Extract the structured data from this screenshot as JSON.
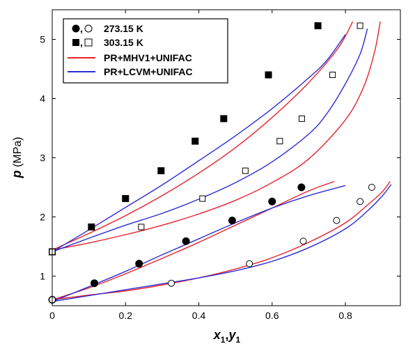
{
  "chart_data": {
    "type": "scatter",
    "xlabel": {
      "main": "x",
      "sub1": "1",
      "sep": ",",
      "main2": "y",
      "sub2": "1"
    },
    "ylabel": {
      "main": "p",
      "unit": " (MPa)"
    },
    "xlim": [
      0,
      0.95
    ],
    "ylim": [
      0.5,
      5.5
    ],
    "xticks": [
      0,
      0.2,
      0.4,
      0.6,
      0.8
    ],
    "xtick_labels": [
      "0",
      "0.2",
      "0.4",
      "0.6",
      "0.8"
    ],
    "yticks": [
      1,
      2,
      3,
      4,
      5
    ],
    "ytick_labels": [
      "1",
      "2",
      "3",
      "4",
      "5"
    ],
    "legend": [
      {
        "label": "273.15 K",
        "type": "markers",
        "markers": [
          "circle-filled",
          "circle-open"
        ],
        "sep": ","
      },
      {
        "label": "303.15 K",
        "type": "markers",
        "markers": [
          "square-filled",
          "square-open"
        ],
        "sep": ","
      },
      {
        "label": "PR+MHV1+UNIFAC",
        "type": "line",
        "color": "#e8212a"
      },
      {
        "label": "PR+LCVM+UNIFAC",
        "type": "line",
        "color": "#2b2bd6"
      }
    ],
    "legend_position": "top-left",
    "series": [
      {
        "marker": "circle",
        "filled": true,
        "points": [
          [
            0,
            0.6
          ],
          [
            0.115,
            0.88
          ],
          [
            0.237,
            1.21
          ],
          [
            0.365,
            1.59
          ],
          [
            0.491,
            1.94
          ],
          [
            0.6,
            2.26
          ],
          [
            0.68,
            2.5
          ]
        ]
      },
      {
        "marker": "circle",
        "filled": false,
        "points": [
          [
            0,
            0.6
          ],
          [
            0.325,
            0.88
          ],
          [
            0.538,
            1.21
          ],
          [
            0.685,
            1.59
          ],
          [
            0.776,
            1.94
          ],
          [
            0.84,
            2.26
          ],
          [
            0.872,
            2.5
          ]
        ]
      },
      {
        "marker": "square",
        "filled": true,
        "points": [
          [
            0,
            1.41
          ],
          [
            0.107,
            1.83
          ],
          [
            0.2,
            2.31
          ],
          [
            0.297,
            2.78
          ],
          [
            0.39,
            3.28
          ],
          [
            0.468,
            3.66
          ],
          [
            0.59,
            4.4
          ],
          [
            0.725,
            5.23
          ]
        ]
      },
      {
        "marker": "square",
        "filled": false,
        "points": [
          [
            0,
            1.41
          ],
          [
            0.243,
            1.83
          ],
          [
            0.41,
            2.31
          ],
          [
            0.527,
            2.78
          ],
          [
            0.621,
            3.28
          ],
          [
            0.681,
            3.66
          ],
          [
            0.765,
            4.4
          ],
          [
            0.84,
            5.23
          ]
        ]
      },
      {
        "line": true,
        "color": "#e8212a",
        "points": [
          [
            0,
            0.6
          ],
          [
            0.1,
            0.8
          ],
          [
            0.2,
            1.04
          ],
          [
            0.3,
            1.3
          ],
          [
            0.4,
            1.57
          ],
          [
            0.5,
            1.86
          ],
          [
            0.6,
            2.15
          ],
          [
            0.7,
            2.44
          ],
          [
            0.77,
            2.6
          ]
        ]
      },
      {
        "line": true,
        "color": "#e8212a",
        "points": [
          [
            0,
            0.6
          ],
          [
            0.1,
            0.68
          ],
          [
            0.2,
            0.75
          ],
          [
            0.3,
            0.85
          ],
          [
            0.4,
            0.97
          ],
          [
            0.5,
            1.12
          ],
          [
            0.6,
            1.31
          ],
          [
            0.7,
            1.57
          ],
          [
            0.8,
            1.9
          ],
          [
            0.86,
            2.2
          ],
          [
            0.9,
            2.42
          ],
          [
            0.922,
            2.6
          ]
        ]
      },
      {
        "line": true,
        "color": "#2b2bd6",
        "points": [
          [
            0,
            0.57
          ],
          [
            0.1,
            0.82
          ],
          [
            0.2,
            1.08
          ],
          [
            0.3,
            1.36
          ],
          [
            0.4,
            1.63
          ],
          [
            0.5,
            1.9
          ],
          [
            0.6,
            2.15
          ],
          [
            0.7,
            2.36
          ],
          [
            0.8,
            2.53
          ]
        ]
      },
      {
        "line": true,
        "color": "#2b2bd6",
        "points": [
          [
            0,
            0.57
          ],
          [
            0.1,
            0.67
          ],
          [
            0.2,
            0.77
          ],
          [
            0.3,
            0.87
          ],
          [
            0.4,
            0.97
          ],
          [
            0.5,
            1.09
          ],
          [
            0.6,
            1.25
          ],
          [
            0.7,
            1.48
          ],
          [
            0.8,
            1.8
          ],
          [
            0.86,
            2.1
          ],
          [
            0.9,
            2.35
          ],
          [
            0.925,
            2.55
          ]
        ]
      },
      {
        "line": true,
        "color": "#e8212a",
        "points": [
          [
            0,
            1.44
          ],
          [
            0.1,
            1.72
          ],
          [
            0.2,
            2.02
          ],
          [
            0.3,
            2.36
          ],
          [
            0.4,
            2.74
          ],
          [
            0.5,
            3.17
          ],
          [
            0.6,
            3.68
          ],
          [
            0.7,
            4.27
          ],
          [
            0.78,
            4.85
          ],
          [
            0.82,
            5.3
          ]
        ]
      },
      {
        "line": true,
        "color": "#e8212a",
        "points": [
          [
            0,
            1.44
          ],
          [
            0.1,
            1.56
          ],
          [
            0.2,
            1.7
          ],
          [
            0.3,
            1.86
          ],
          [
            0.4,
            2.05
          ],
          [
            0.5,
            2.28
          ],
          [
            0.6,
            2.58
          ],
          [
            0.7,
            2.98
          ],
          [
            0.8,
            3.64
          ],
          [
            0.85,
            4.2
          ],
          [
            0.88,
            4.8
          ],
          [
            0.895,
            5.3
          ]
        ]
      },
      {
        "line": true,
        "color": "#2b2bd6",
        "points": [
          [
            0,
            1.41
          ],
          [
            0.1,
            1.78
          ],
          [
            0.2,
            2.16
          ],
          [
            0.3,
            2.54
          ],
          [
            0.4,
            2.95
          ],
          [
            0.5,
            3.37
          ],
          [
            0.6,
            3.83
          ],
          [
            0.7,
            4.35
          ],
          [
            0.75,
            4.65
          ],
          [
            0.8,
            5.08
          ]
        ]
      },
      {
        "line": true,
        "color": "#2b2bd6",
        "points": [
          [
            0,
            1.41
          ],
          [
            0.1,
            1.64
          ],
          [
            0.2,
            1.86
          ],
          [
            0.3,
            2.06
          ],
          [
            0.4,
            2.3
          ],
          [
            0.5,
            2.58
          ],
          [
            0.6,
            2.93
          ],
          [
            0.7,
            3.4
          ],
          [
            0.75,
            3.75
          ],
          [
            0.8,
            4.25
          ],
          [
            0.84,
            4.75
          ],
          [
            0.86,
            5.18
          ]
        ]
      }
    ]
  }
}
